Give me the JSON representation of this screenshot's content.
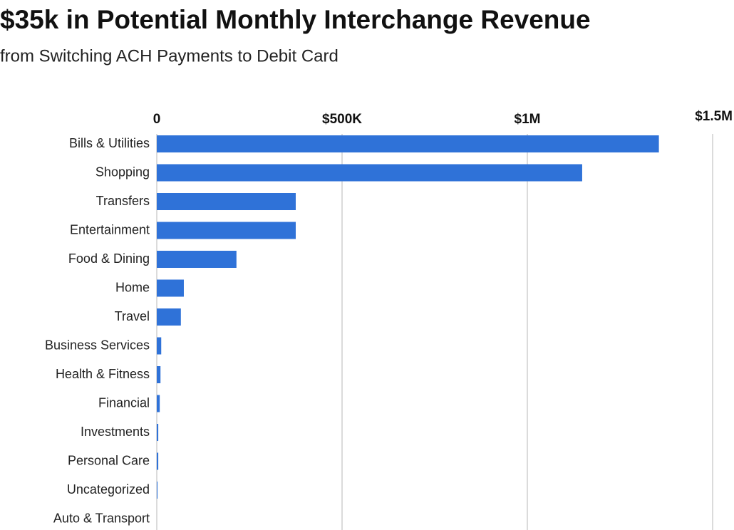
{
  "chart_data": {
    "type": "bar",
    "orientation": "horizontal",
    "title": "$35k in Potential Monthly Interchange Revenue",
    "subtitle": "from Switching ACH Payments to Debit Card",
    "categories": [
      "Bills & Utilities",
      "Shopping",
      "Transfers",
      "Entertainment",
      "Food & Dining",
      "Home",
      "Travel",
      "Business Services",
      "Health & Fitness",
      "Financial",
      "Investments",
      "Personal Care",
      "Uncategorized",
      "Auto & Transport"
    ],
    "values": [
      1355000,
      1148000,
      375000,
      375000,
      215000,
      73000,
      65000,
      12000,
      10000,
      8000,
      4000,
      4000,
      2000,
      0
    ],
    "color": "#2f72d8",
    "xlim": [
      0,
      1500000
    ],
    "xticks": [
      {
        "value": 0,
        "label": "0"
      },
      {
        "value": 500000,
        "label": "$500K"
      },
      {
        "value": 1000000,
        "label": "$1M"
      },
      {
        "value": 1500000,
        "label": "$1.5M"
      }
    ],
    "grid": true
  }
}
